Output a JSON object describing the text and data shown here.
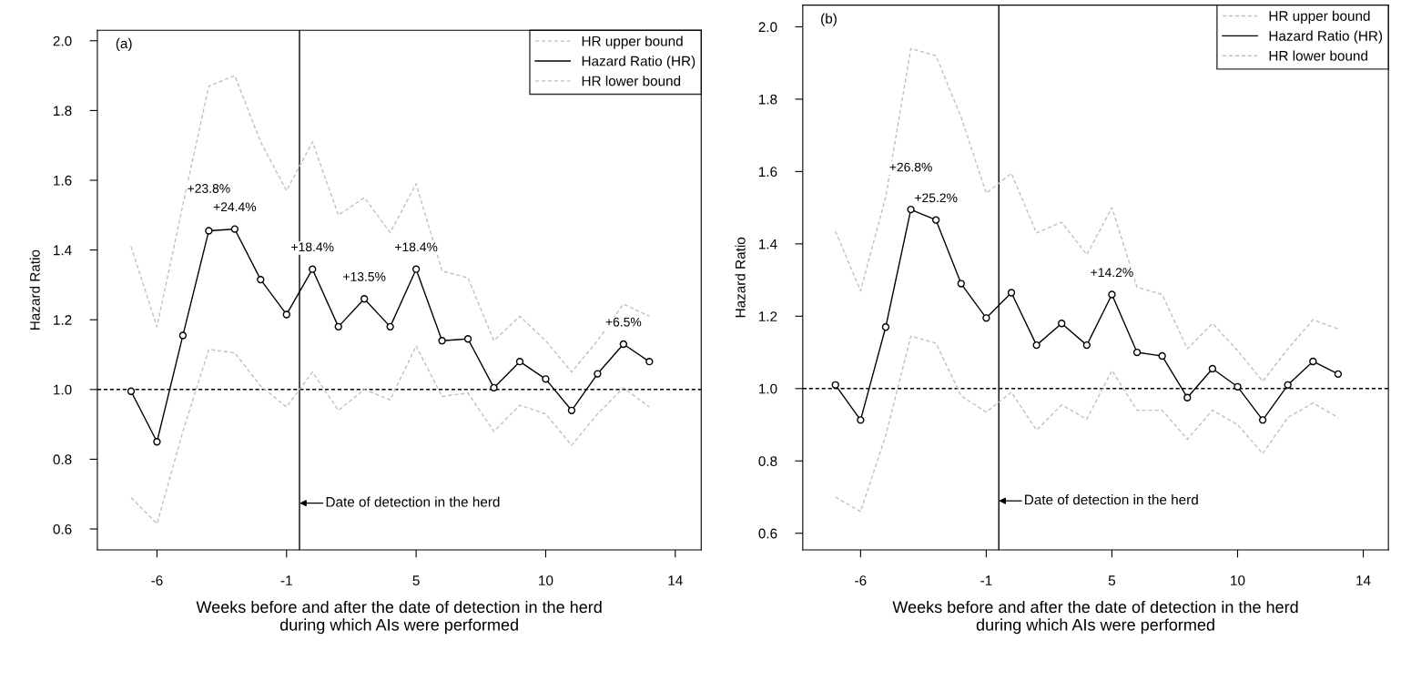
{
  "chart_data": [
    {
      "type": "line",
      "title": "(a)",
      "xlabel": "Weeks before and after the date of detection in the herd\nduring which AIs were performed",
      "ylabel": "Hazard Ratio",
      "categories": [
        null,
        "-6",
        null,
        null,
        null,
        null,
        "-1",
        null,
        null,
        null,
        null,
        "5",
        null,
        null,
        null,
        null,
        "10",
        null,
        null,
        null,
        null,
        "14"
      ],
      "ylim": [
        0.54,
        2.03
      ],
      "yticks": [
        {
          "value": 0.6,
          "label": "0.6"
        },
        {
          "value": 0.8,
          "label": "0.8"
        },
        {
          "value": 1.0,
          "label": "1.0"
        },
        {
          "value": 1.2,
          "label": "1.2"
        },
        {
          "value": 1.4,
          "label": "1.4"
        },
        {
          "value": 1.6,
          "label": "1.6"
        },
        {
          "value": 1.8,
          "label": "1.8"
        },
        {
          "value": 2.0,
          "label": "2.0"
        }
      ],
      "series": [
        {
          "name": "HR upper bound",
          "color": "#c0c0c0",
          "line_style": "dashed",
          "marker": "none",
          "values": [
            1.41,
            1.18,
            1.53,
            1.87,
            1.9,
            1.71,
            1.57,
            1.71,
            1.5,
            1.55,
            1.45,
            1.59,
            1.34,
            1.32,
            1.14,
            1.21,
            1.14,
            1.05,
            1.14,
            1.245,
            1.21,
            null
          ]
        },
        {
          "name": "Hazard Ratio (HR)",
          "color": "#000000",
          "line_style": "solid",
          "marker": "circle",
          "values": [
            0.995,
            0.85,
            1.155,
            1.455,
            1.46,
            1.315,
            1.215,
            1.345,
            1.18,
            1.26,
            1.18,
            1.345,
            1.14,
            1.145,
            1.005,
            1.08,
            1.03,
            0.94,
            1.045,
            1.13,
            1.08,
            null
          ]
        },
        {
          "name": "HR lower bound",
          "color": "#c0c0c0",
          "line_style": "dashed",
          "marker": "none",
          "values": [
            0.69,
            0.615,
            0.88,
            1.115,
            1.105,
            1.01,
            0.95,
            1.05,
            0.94,
            1.0,
            0.97,
            1.125,
            0.98,
            0.99,
            0.88,
            0.955,
            0.93,
            0.84,
            0.93,
            1.005,
            0.95,
            null
          ]
        }
      ],
      "annotations": [
        {
          "text": "+23.8%",
          "y": 1.455
        },
        {
          "text": "+24.4%",
          "y": 1.46
        },
        {
          "text": "+18.4%",
          "y": 1.345
        },
        {
          "text": "+13.5%",
          "y": 1.26
        },
        {
          "text": "+18.4%",
          "y": 1.345
        },
        {
          "text": "+6.5%",
          "y": 1.13
        },
        "Date of detection in the herd"
      ],
      "ref_lines": [
        {
          "axis": "y",
          "value": 1.0,
          "color": "#000000",
          "line_style": "dashed"
        }
      ],
      "legend": "top right"
    },
    {
      "type": "line",
      "title": "(b)",
      "xlabel": "Weeks before and after the date of detection in the herd\nduring which AIs were performed",
      "ylabel": "Hazard Ratio",
      "categories": [
        null,
        "-6",
        null,
        null,
        null,
        null,
        "-1",
        null,
        null,
        null,
        null,
        "5",
        null,
        null,
        null,
        null,
        "10",
        null,
        null,
        null,
        null,
        "14"
      ],
      "ylim": [
        0.554,
        2.06
      ],
      "yticks": [
        {
          "value": 0.6,
          "label": "0.6"
        },
        {
          "value": 0.8,
          "label": "0.8"
        },
        {
          "value": 1.0,
          "label": "1.0"
        },
        {
          "value": 1.2,
          "label": "1.2"
        },
        {
          "value": 1.4,
          "label": "1.4"
        },
        {
          "value": 1.6,
          "label": "1.6"
        },
        {
          "value": 1.8,
          "label": "1.8"
        },
        {
          "value": 2.0,
          "label": "2.0"
        }
      ],
      "series": [
        {
          "name": "HR upper bound",
          "color": "#c0c0c0",
          "line_style": "dashed",
          "marker": "none",
          "values": [
            1.435,
            1.27,
            1.53,
            1.94,
            1.92,
            1.75,
            1.54,
            1.595,
            1.43,
            1.46,
            1.37,
            1.5,
            1.28,
            1.26,
            1.11,
            1.18,
            1.105,
            1.02,
            1.11,
            1.19,
            1.165,
            null
          ]
        },
        {
          "name": "Hazard Ratio (HR)",
          "color": "#000000",
          "line_style": "solid",
          "marker": "circle",
          "values": [
            1.01,
            0.913,
            1.17,
            1.495,
            1.466,
            1.29,
            1.195,
            1.265,
            1.12,
            1.18,
            1.12,
            1.26,
            1.1,
            1.09,
            0.975,
            1.055,
            1.005,
            0.913,
            1.01,
            1.075,
            1.04,
            null
          ]
        },
        {
          "name": "HR lower bound",
          "color": "#c0c0c0",
          "line_style": "dashed",
          "marker": "none",
          "values": [
            0.7,
            0.66,
            0.87,
            1.145,
            1.125,
            0.98,
            0.935,
            0.99,
            0.885,
            0.955,
            0.915,
            1.05,
            0.94,
            0.94,
            0.86,
            0.94,
            0.9,
            0.82,
            0.92,
            0.96,
            0.92,
            null
          ]
        }
      ],
      "annotations": [
        {
          "text": "+26.8%",
          "y": 1.495
        },
        {
          "text": "+25.2%",
          "y": 1.466
        },
        {
          "text": "+14.2%",
          "y": 1.26
        },
        "Date of detection in the herd"
      ],
      "ref_lines": [
        {
          "axis": "y",
          "value": 1.0,
          "color": "#000000",
          "line_style": "dashed"
        }
      ],
      "legend": "top right"
    }
  ]
}
